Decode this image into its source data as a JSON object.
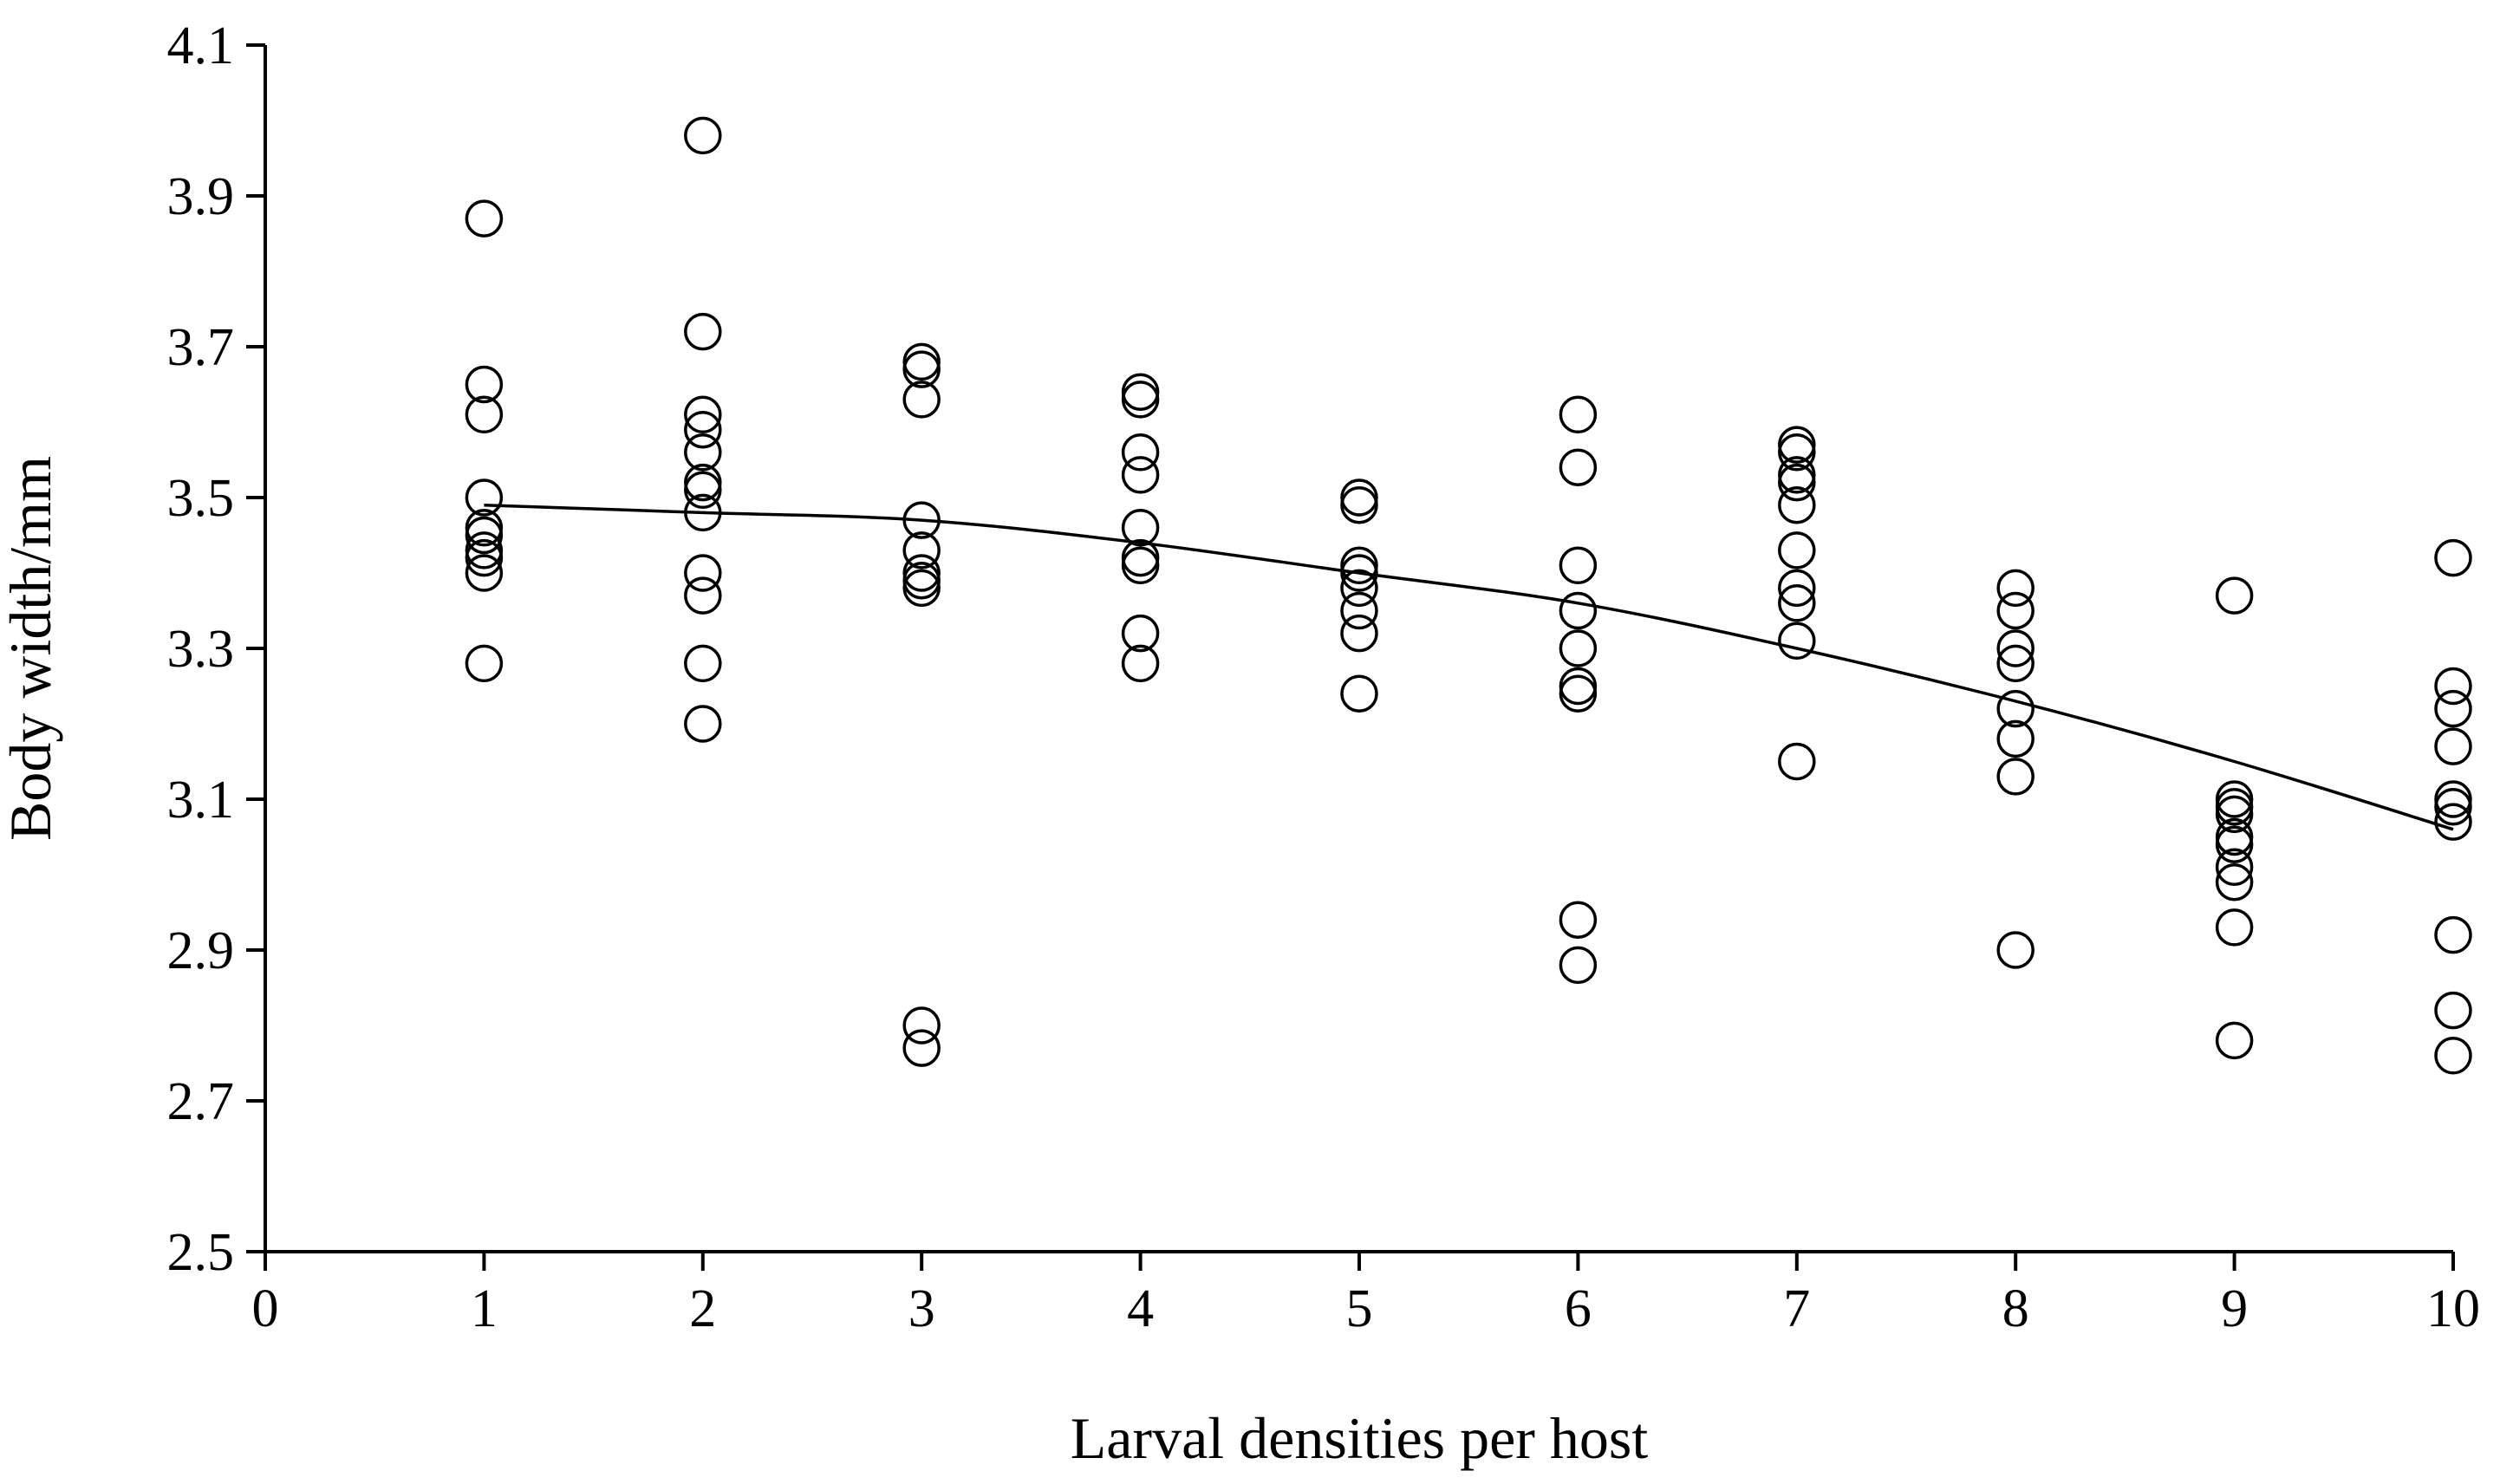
{
  "chart_data": {
    "type": "scatter",
    "title": "",
    "xlabel": "Larval densities per host",
    "ylabel": "Body width/mm",
    "xlim": [
      0,
      10
    ],
    "ylim": [
      2.5,
      4.1
    ],
    "x_ticks": [
      0,
      1,
      2,
      3,
      4,
      5,
      6,
      7,
      8,
      9,
      10
    ],
    "y_ticks": [
      2.5,
      2.7,
      2.9,
      3.1,
      3.3,
      3.5,
      3.7,
      3.9,
      4.1
    ],
    "x_tick_labels": [
      "0",
      "1",
      "2",
      "3",
      "4",
      "5",
      "6",
      "7",
      "8",
      "9",
      "10"
    ],
    "y_tick_labels": [
      "2.5",
      "2.7",
      "2.9",
      "3.1",
      "3.3",
      "3.5",
      "3.7",
      "3.9",
      "4.1"
    ],
    "grid": false,
    "legend": "none",
    "marker": "open-circle",
    "points": [
      {
        "x": 1,
        "y": 3.87
      },
      {
        "x": 1,
        "y": 3.65
      },
      {
        "x": 1,
        "y": 3.61
      },
      {
        "x": 1,
        "y": 3.5
      },
      {
        "x": 1,
        "y": 3.46
      },
      {
        "x": 1,
        "y": 3.45
      },
      {
        "x": 1,
        "y": 3.43
      },
      {
        "x": 1,
        "y": 3.42
      },
      {
        "x": 1,
        "y": 3.4
      },
      {
        "x": 1,
        "y": 3.28
      },
      {
        "x": 2,
        "y": 3.98
      },
      {
        "x": 2,
        "y": 3.72
      },
      {
        "x": 2,
        "y": 3.61
      },
      {
        "x": 2,
        "y": 3.59
      },
      {
        "x": 2,
        "y": 3.56
      },
      {
        "x": 2,
        "y": 3.52
      },
      {
        "x": 2,
        "y": 3.51
      },
      {
        "x": 2,
        "y": 3.48
      },
      {
        "x": 2,
        "y": 3.4
      },
      {
        "x": 2,
        "y": 3.37
      },
      {
        "x": 2,
        "y": 3.28
      },
      {
        "x": 2,
        "y": 3.2
      },
      {
        "x": 3,
        "y": 3.68
      },
      {
        "x": 3,
        "y": 3.67
      },
      {
        "x": 3,
        "y": 3.63
      },
      {
        "x": 3,
        "y": 3.47
      },
      {
        "x": 3,
        "y": 3.43
      },
      {
        "x": 3,
        "y": 3.4
      },
      {
        "x": 3,
        "y": 3.39
      },
      {
        "x": 3,
        "y": 3.38
      },
      {
        "x": 3,
        "y": 2.8
      },
      {
        "x": 3,
        "y": 2.77
      },
      {
        "x": 4,
        "y": 3.64
      },
      {
        "x": 4,
        "y": 3.63
      },
      {
        "x": 4,
        "y": 3.56
      },
      {
        "x": 4,
        "y": 3.53
      },
      {
        "x": 4,
        "y": 3.46
      },
      {
        "x": 4,
        "y": 3.42
      },
      {
        "x": 4,
        "y": 3.41
      },
      {
        "x": 4,
        "y": 3.32
      },
      {
        "x": 4,
        "y": 3.28
      },
      {
        "x": 5,
        "y": 3.5
      },
      {
        "x": 5,
        "y": 3.49
      },
      {
        "x": 5,
        "y": 3.41
      },
      {
        "x": 5,
        "y": 3.4
      },
      {
        "x": 5,
        "y": 3.38
      },
      {
        "x": 5,
        "y": 3.35
      },
      {
        "x": 5,
        "y": 3.32
      },
      {
        "x": 5,
        "y": 3.24
      },
      {
        "x": 6,
        "y": 3.61
      },
      {
        "x": 6,
        "y": 3.54
      },
      {
        "x": 6,
        "y": 3.41
      },
      {
        "x": 6,
        "y": 3.35
      },
      {
        "x": 6,
        "y": 3.3
      },
      {
        "x": 6,
        "y": 3.25
      },
      {
        "x": 6,
        "y": 3.24
      },
      {
        "x": 6,
        "y": 2.94
      },
      {
        "x": 6,
        "y": 2.88
      },
      {
        "x": 7,
        "y": 3.57
      },
      {
        "x": 7,
        "y": 3.56
      },
      {
        "x": 7,
        "y": 3.53
      },
      {
        "x": 7,
        "y": 3.52
      },
      {
        "x": 7,
        "y": 3.49
      },
      {
        "x": 7,
        "y": 3.43
      },
      {
        "x": 7,
        "y": 3.38
      },
      {
        "x": 7,
        "y": 3.36
      },
      {
        "x": 7,
        "y": 3.31
      },
      {
        "x": 7,
        "y": 3.15
      },
      {
        "x": 8,
        "y": 3.38
      },
      {
        "x": 8,
        "y": 3.35
      },
      {
        "x": 8,
        "y": 3.3
      },
      {
        "x": 8,
        "y": 3.28
      },
      {
        "x": 8,
        "y": 3.22
      },
      {
        "x": 8,
        "y": 3.18
      },
      {
        "x": 8,
        "y": 3.13
      },
      {
        "x": 8,
        "y": 2.9
      },
      {
        "x": 9,
        "y": 3.37
      },
      {
        "x": 9,
        "y": 3.1
      },
      {
        "x": 9,
        "y": 3.09
      },
      {
        "x": 9,
        "y": 3.08
      },
      {
        "x": 9,
        "y": 3.05
      },
      {
        "x": 9,
        "y": 3.04
      },
      {
        "x": 9,
        "y": 3.01
      },
      {
        "x": 9,
        "y": 2.99
      },
      {
        "x": 9,
        "y": 2.93
      },
      {
        "x": 9,
        "y": 2.78
      },
      {
        "x": 10,
        "y": 3.42
      },
      {
        "x": 10,
        "y": 3.25
      },
      {
        "x": 10,
        "y": 3.22
      },
      {
        "x": 10,
        "y": 3.17
      },
      {
        "x": 10,
        "y": 3.1
      },
      {
        "x": 10,
        "y": 3.09
      },
      {
        "x": 10,
        "y": 3.07
      },
      {
        "x": 10,
        "y": 2.92
      },
      {
        "x": 10,
        "y": 2.82
      },
      {
        "x": 10,
        "y": 2.76
      }
    ],
    "trend_line": {
      "type": "polynomial",
      "x": [
        1,
        2,
        3,
        4,
        5,
        6,
        7,
        8,
        9,
        10
      ],
      "y": [
        3.49,
        3.48,
        3.47,
        3.44,
        3.4,
        3.36,
        3.3,
        3.23,
        3.15,
        3.06
      ]
    }
  }
}
